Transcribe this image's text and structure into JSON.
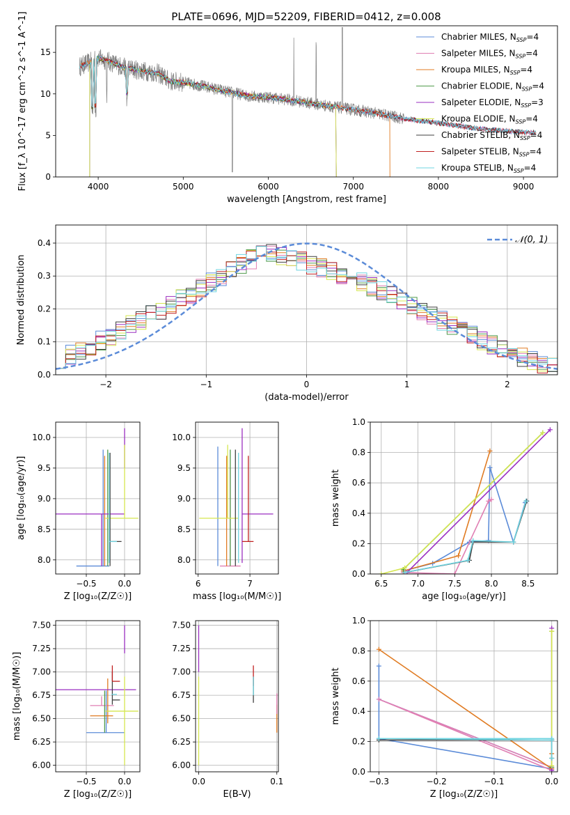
{
  "title": "PLATE=0696, MJD=52209, FIBERID=0412, z=0.008",
  "colors": {
    "Chabrier MILES": "#5b8bd8",
    "Salpeter MILES": "#e07fb3",
    "Kroupa MILES": "#e07b22",
    "Chabrier ELODIE": "#4f9a4a",
    "Salpeter ELODIE": "#9a2ec0",
    "Kroupa ELODIE": "#d5e64f",
    "Chabrier STELIB": "#3f3f3f",
    "Salpeter STELIB": "#c01f1f",
    "Kroupa STELIB": "#6fd4e0",
    "data": "#808080",
    "normal": "#5b8bd8"
  },
  "chart_data": [
    {
      "type": "line",
      "id": "spectrum",
      "title": "PLATE=0696, MJD=52209, FIBERID=0412, z=0.008",
      "xlabel": "wavelength [Angstrom, rest frame]",
      "ylabel": "Flux [f_λ 10^-17 erg cm^-2 s^-1 A^-1]",
      "xlim": [
        3500,
        9400
      ],
      "ylim": [
        0,
        18.2
      ],
      "xticks": [
        4000,
        5000,
        6000,
        7000,
        8000,
        9000
      ],
      "yticks": [
        0,
        5,
        10,
        15
      ],
      "grid": false,
      "legend_position": "top-right",
      "legend": [
        {
          "label": "Chabrier MILES, N",
          "sub": "SSP",
          "suffix": "=4"
        },
        {
          "label": "Salpeter MILES, N",
          "sub": "SSP",
          "suffix": "=4"
        },
        {
          "label": "Kroupa MILES, N",
          "sub": "SSP",
          "suffix": "=4"
        },
        {
          "label": "Chabrier ELODIE, N",
          "sub": "SSP",
          "suffix": "=4"
        },
        {
          "label": "Salpeter ELODIE, N",
          "sub": "SSP",
          "suffix": "=3"
        },
        {
          "label": "Kroupa ELODIE, N",
          "sub": "SSP",
          "suffix": "=4"
        },
        {
          "label": "Chabrier STELIB, N",
          "sub": "SSP",
          "suffix": "=4"
        },
        {
          "label": "Salpeter STELIB, N",
          "sub": "SSP",
          "suffix": "=4"
        },
        {
          "label": "Kroupa STELIB, N",
          "sub": "SSP",
          "suffix": "=4"
        }
      ],
      "continuum": {
        "x": [
          3780,
          3900,
          4000,
          4100,
          4300,
          4500,
          4700,
          4850,
          5000,
          5200,
          5500,
          5800,
          6000,
          6300,
          6600,
          7000,
          7300,
          7600,
          8000,
          8400,
          8800,
          9150
        ],
        "y": [
          13.3,
          13.8,
          14.3,
          14.0,
          13.2,
          12.8,
          12.5,
          11.5,
          11.4,
          11.0,
          10.3,
          9.7,
          9.6,
          9.2,
          8.7,
          8.1,
          7.6,
          7.0,
          6.5,
          5.9,
          5.5,
          5.3
        ]
      }
    },
    {
      "type": "histogram",
      "id": "residuals",
      "xlabel": "(data-model)/error",
      "ylabel": "Normed distribution",
      "xlim": [
        -2.5,
        2.5
      ],
      "ylim": [
        0,
        0.455
      ],
      "xticks": [
        -2,
        -1,
        0,
        1,
        2
      ],
      "yticks": [
        0.0,
        0.1,
        0.2,
        0.3,
        0.4
      ],
      "grid": true,
      "legend_position": "top-right",
      "legend": [
        "𝒩(0, 1)"
      ],
      "bin_width": 0.1,
      "shape": {
        "x": [
          -2.5,
          -2.0,
          -1.5,
          -1.0,
          -0.7,
          -0.4,
          0.0,
          0.4,
          0.7,
          1.0,
          1.5,
          2.0,
          2.5
        ],
        "y": [
          0.04,
          0.11,
          0.19,
          0.27,
          0.33,
          0.37,
          0.34,
          0.3,
          0.26,
          0.22,
          0.14,
          0.07,
          0.02
        ]
      }
    },
    {
      "type": "scatter",
      "id": "age-vs-Z",
      "xlabel": "Z [log₁₀(Z/Z☉)]",
      "ylabel": "age  [log₁₀(age/yr)]",
      "xlim": [
        -0.9,
        0.2
      ],
      "ylim": [
        7.77,
        10.25
      ],
      "xticks": [
        -0.5,
        0.0
      ],
      "yticks": [
        8.0,
        8.5,
        9.0,
        9.5,
        10.0
      ],
      "grid": true,
      "errorbars": [
        {
          "model": "Chabrier MILES",
          "x": -0.28,
          "xerr": [
            0.35,
            0.08
          ],
          "y": 7.9,
          "yerr": [
            0.0,
            1.9
          ]
        },
        {
          "model": "Kroupa MILES",
          "x": -0.26,
          "xerr": [
            0.0,
            0.0
          ],
          "y": 8.4,
          "yerr": [
            0.5,
            1.3
          ]
        },
        {
          "model": "Chabrier ELODIE",
          "x": -0.22,
          "xerr": [
            0.0,
            0.0
          ],
          "y": 8.5,
          "yerr": [
            0.6,
            1.3
          ]
        },
        {
          "model": "Salpeter ELODIE",
          "x": -0.3,
          "xerr": [
            0.6,
            0.3
          ],
          "y": 8.75,
          "yerr": [
            0.85,
            0.0
          ]
        },
        {
          "model": "Salpeter ELODIE",
          "x": 0.0,
          "xerr": [
            0.0,
            0.0
          ],
          "y": 9.5,
          "yerr": [
            0.0,
            0.65
          ]
        },
        {
          "model": "Kroupa ELODIE",
          "x": 0.0,
          "xerr": [
            0.25,
            0.18
          ],
          "y": 8.68,
          "yerr": [
            0.0,
            1.2
          ]
        },
        {
          "model": "Chabrier STELIB",
          "x": -0.19,
          "xerr": [
            0.0,
            0.15
          ],
          "y": 8.3,
          "yerr": [
            0.4,
            1.45
          ]
        },
        {
          "model": "Kroupa STELIB",
          "x": -0.2,
          "xerr": [
            0.0,
            0.1
          ],
          "y": 8.3,
          "yerr": [
            0.35,
            1.45
          ]
        }
      ]
    },
    {
      "type": "scatter",
      "id": "age-vs-mass",
      "xlabel": "mass [log₁₀(M/M☉)]",
      "ylabel": "",
      "xlim": [
        5.95,
        7.55
      ],
      "ylim": [
        7.77,
        10.25
      ],
      "xticks": [
        6,
        7
      ],
      "yticks": [
        8.0,
        8.5,
        9.0,
        9.5,
        10.0
      ],
      "grid": true,
      "errorbars": [
        {
          "model": "Chabrier MILES",
          "x": 6.38,
          "xerr": [
            0.0,
            0.0
          ],
          "y": 7.9,
          "yerr": [
            0.0,
            1.95
          ]
        },
        {
          "model": "Salpeter MILES",
          "x": 6.62,
          "xerr": [
            0.2,
            0.2
          ],
          "y": 7.9,
          "yerr": [
            0.0,
            1.6
          ]
        },
        {
          "model": "Kroupa MILES",
          "x": 6.55,
          "xerr": [
            0.0,
            0.0
          ],
          "y": 8.3,
          "yerr": [
            0.4,
            1.4
          ]
        },
        {
          "model": "Chabrier ELODIE",
          "x": 6.62,
          "xerr": [
            0.0,
            0.0
          ],
          "y": 8.5,
          "yerr": [
            0.6,
            1.3
          ]
        },
        {
          "model": "Salpeter ELODIE",
          "x": 6.85,
          "xerr": [
            0.0,
            0.6
          ],
          "y": 8.75,
          "yerr": [
            0.8,
            1.4
          ]
        },
        {
          "model": "Kroupa ELODIE",
          "x": 6.57,
          "xerr": [
            0.55,
            0.2
          ],
          "y": 8.68,
          "yerr": [
            0.0,
            1.2
          ]
        },
        {
          "model": "Chabrier STELIB",
          "x": 6.72,
          "xerr": [
            0.0,
            0.0
          ],
          "y": 8.5,
          "yerr": [
            0.6,
            1.3
          ]
        },
        {
          "model": "Salpeter STELIB",
          "x": 6.97,
          "xerr": [
            0.12,
            0.1
          ],
          "y": 8.3,
          "yerr": [
            0.0,
            1.4
          ]
        },
        {
          "model": "Kroupa STELIB",
          "x": 6.78,
          "xerr": [
            0.0,
            0.0
          ],
          "y": 8.35,
          "yerr": [
            0.4,
            1.4
          ]
        }
      ]
    },
    {
      "type": "line",
      "id": "mass-weight-vs-age",
      "xlabel": "age  [log₁₀(age/yr)]",
      "ylabel": "mass weight",
      "xlim": [
        6.35,
        8.9
      ],
      "ylim": [
        0,
        1.0
      ],
      "xticks": [
        6.5,
        7.0,
        7.5,
        8.0,
        8.5
      ],
      "yticks": [
        0.0,
        0.2,
        0.4,
        0.6,
        0.8,
        1.0
      ],
      "grid": true,
      "series": [
        {
          "name": "Chabrier MILES",
          "x": [
            6.8,
            7.2,
            7.7,
            7.96,
            7.98,
            8.3,
            8.46,
            8.48
          ],
          "y": [
            0.02,
            0.07,
            0.21,
            0.22,
            0.7,
            0.21,
            0.47,
            0.48
          ]
        },
        {
          "name": "Salpeter MILES",
          "x": [
            6.8,
            7.5,
            7.96,
            8.0
          ],
          "y": [
            0.01,
            0.0,
            0.48,
            0.49
          ]
        },
        {
          "name": "Kroupa MILES",
          "x": [
            6.8,
            7.55,
            7.98
          ],
          "y": [
            0.02,
            0.12,
            0.81
          ]
        },
        {
          "name": "Chabrier ELODIE",
          "x": [
            6.8,
            8.7
          ],
          "y": [
            0.03,
            0.93
          ]
        },
        {
          "name": "Salpeter ELODIE",
          "x": [
            6.85,
            8.8
          ],
          "y": [
            0.01,
            0.95
          ]
        },
        {
          "name": "Kroupa ELODIE",
          "x": [
            6.5,
            6.82,
            8.7
          ],
          "y": [
            0.0,
            0.04,
            0.93
          ]
        },
        {
          "name": "Chabrier STELIB",
          "x": [
            6.82,
            7.7,
            7.75,
            8.3,
            8.48
          ],
          "y": [
            0.01,
            0.09,
            0.21,
            0.21,
            0.48
          ]
        },
        {
          "name": "Kroupa STELIB",
          "x": [
            6.82,
            7.68,
            7.75,
            8.3,
            8.47
          ],
          "y": [
            0.01,
            0.09,
            0.22,
            0.21,
            0.48
          ]
        }
      ]
    },
    {
      "type": "scatter",
      "id": "mass-vs-Z",
      "xlabel": "Z [log₁₀(Z/Z☉)]",
      "ylabel": "mass [log₁₀(M/M☉)]",
      "xlim": [
        -0.9,
        0.2
      ],
      "ylim": [
        5.93,
        7.55
      ],
      "xticks": [
        -0.5,
        0.0
      ],
      "yticks": [
        6.0,
        6.25,
        6.5,
        6.75,
        7.0,
        7.25,
        7.5
      ],
      "grid": true,
      "errorbars": [
        {
          "model": "Chabrier MILES",
          "x": -0.3,
          "xerr": [
            0.2,
            0.3
          ],
          "y": 6.35,
          "yerr": [
            0.0,
            0.0
          ]
        },
        {
          "model": "Chabrier MILES",
          "x": -0.24,
          "xerr": [
            0.0,
            0.0
          ],
          "y": 6.5,
          "yerr": [
            0.15,
            0.3
          ]
        },
        {
          "model": "Salpeter MILES",
          "x": -0.3,
          "xerr": [
            0.15,
            0.16
          ],
          "y": 6.64,
          "yerr": [
            0.0,
            0.1
          ]
        },
        {
          "model": "Kroupa MILES",
          "x": -0.3,
          "xerr": [
            0.15,
            0.15
          ],
          "y": 6.53,
          "yerr": [
            0.0,
            0.0
          ]
        },
        {
          "model": "Kroupa MILES",
          "x": -0.22,
          "xerr": [
            0.0,
            0.0
          ],
          "y": 6.55,
          "yerr": [
            0.1,
            0.38
          ]
        },
        {
          "model": "Chabrier ELODIE",
          "x": -0.26,
          "xerr": [
            0.0,
            0.0
          ],
          "y": 6.5,
          "yerr": [
            0.15,
            0.3
          ]
        },
        {
          "model": "Salpeter ELODIE",
          "x": -0.3,
          "xerr": [
            0.6,
            0.45
          ],
          "y": 6.81,
          "yerr": [
            0.0,
            0.0
          ]
        },
        {
          "model": "Salpeter ELODIE",
          "x": 0.0,
          "xerr": [
            0.0,
            0.0
          ],
          "y": 7.2,
          "yerr": [
            0.0,
            0.3
          ]
        },
        {
          "model": "Kroupa ELODIE",
          "x": 0.0,
          "xerr": [
            0.25,
            0.18
          ],
          "y": 6.58,
          "yerr": [
            0.58,
            0.37
          ]
        },
        {
          "model": "Chabrier STELIB",
          "x": -0.16,
          "xerr": [
            0.0,
            0.1
          ],
          "y": 6.7,
          "yerr": [
            0.05,
            0.3
          ]
        },
        {
          "model": "Salpeter STELIB",
          "x": -0.16,
          "xerr": [
            0.0,
            0.1
          ],
          "y": 6.9,
          "yerr": [
            0.0,
            0.17
          ]
        },
        {
          "model": "Kroupa STELIB",
          "x": -0.17,
          "xerr": [
            0.0,
            0.07
          ],
          "y": 6.76,
          "yerr": [
            0.0,
            0.0
          ]
        }
      ]
    },
    {
      "type": "scatter",
      "id": "mass-vs-ebv",
      "xlabel": "E(B-V)",
      "ylabel": "",
      "xlim": [
        -0.004,
        0.102
      ],
      "ylim": [
        5.93,
        7.55
      ],
      "xticks": [
        0.0,
        0.1
      ],
      "yticks": [
        6.0,
        6.25,
        6.5,
        6.75,
        7.0,
        7.25,
        7.5
      ],
      "grid": true,
      "errorbars": [
        {
          "model": "Salpeter ELODIE",
          "x": 0.0,
          "xerr": [
            0.0,
            0.0
          ],
          "y": 7.2,
          "yerr": [
            0.2,
            0.3
          ]
        },
        {
          "model": "Kroupa ELODIE",
          "x": 0.0,
          "xerr": [
            0.0,
            0.0
          ],
          "y": 6.5,
          "yerr": [
            0.5,
            0.45
          ]
        },
        {
          "model": "Chabrier STELIB",
          "x": 0.07,
          "xerr": [
            0.0,
            0.0
          ],
          "y": 6.8,
          "yerr": [
            0.13,
            0.15
          ]
        },
        {
          "model": "Salpeter STELIB",
          "x": 0.07,
          "xerr": [
            0.0,
            0.0
          ],
          "y": 6.95,
          "yerr": [
            0.1,
            0.12
          ]
        },
        {
          "model": "Kroupa STELIB",
          "x": 0.07,
          "xerr": [
            0.0,
            0.0
          ],
          "y": 6.85,
          "yerr": [
            0.1,
            0.1
          ]
        },
        {
          "model": "Kroupa MILES",
          "x": 0.1,
          "xerr": [
            0.0,
            0.0
          ],
          "y": 6.55,
          "yerr": [
            0.2,
            0.1
          ]
        },
        {
          "model": "Salpeter MILES",
          "x": 0.1,
          "xerr": [
            0.0,
            0.0
          ],
          "y": 6.65,
          "yerr": [
            0.1,
            0.12
          ]
        }
      ]
    },
    {
      "type": "line",
      "id": "mass-weight-vs-Z",
      "xlabel": "Z [log₁₀(Z/Z☉)]",
      "ylabel": "mass weight",
      "xlim": [
        -0.315,
        0.01
      ],
      "ylim": [
        0,
        1.0
      ],
      "xticks": [
        -0.3,
        -0.2,
        -0.1,
        0.0
      ],
      "yticks": [
        0.0,
        0.2,
        0.4,
        0.6,
        0.8,
        1.0
      ],
      "grid": true,
      "series": [
        {
          "name": "Chabrier MILES",
          "x": [
            0.0,
            -0.3,
            -0.3,
            -0.3,
            0.0
          ],
          "y": [
            0.02,
            0.22,
            0.7,
            0.48,
            0.03
          ]
        },
        {
          "name": "Salpeter MILES",
          "x": [
            0.0,
            -0.3,
            0.0
          ],
          "y": [
            0.01,
            0.48,
            0.03
          ]
        },
        {
          "name": "Kroupa MILES",
          "x": [
            -0.3,
            0.0,
            0.0
          ],
          "y": [
            0.81,
            0.02,
            0.12
          ]
        },
        {
          "name": "Chabrier ELODIE",
          "x": [
            0.0,
            0.0
          ],
          "y": [
            0.03,
            0.93
          ]
        },
        {
          "name": "Salpeter ELODIE",
          "x": [
            0.0,
            0.0
          ],
          "y": [
            0.01,
            0.95
          ]
        },
        {
          "name": "Kroupa ELODIE",
          "x": [
            0.0,
            0.0
          ],
          "y": [
            0.04,
            0.93
          ]
        },
        {
          "name": "Chabrier STELIB",
          "x": [
            0.0,
            -0.3,
            0.0,
            0.0
          ],
          "y": [
            0.21,
            0.21,
            0.21,
            0.09
          ]
        },
        {
          "name": "Kroupa STELIB",
          "x": [
            0.0,
            -0.3,
            0.0,
            0.0
          ],
          "y": [
            0.22,
            0.22,
            0.21,
            0.09
          ]
        }
      ]
    }
  ]
}
